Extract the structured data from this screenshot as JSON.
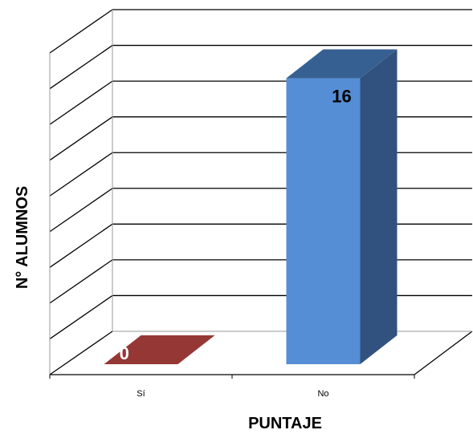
{
  "chart_data": {
    "type": "bar",
    "style": "3d",
    "categories": [
      "Sí",
      "No"
    ],
    "values": [
      0,
      16
    ],
    "xlabel": "PUNTAJE",
    "ylabel": "N° ALUMNOS",
    "ylim": [
      0,
      18
    ],
    "grid": true,
    "legend": "none",
    "data_labels": [
      "0",
      "16"
    ],
    "bar_colors": [
      {
        "front": "#953735",
        "top": "#953735",
        "side": "#632523"
      },
      {
        "front": "#558ED5",
        "top": "#376092",
        "side": "#31527E"
      }
    ],
    "label_colors": [
      "#ffffff",
      "#000000"
    ]
  }
}
